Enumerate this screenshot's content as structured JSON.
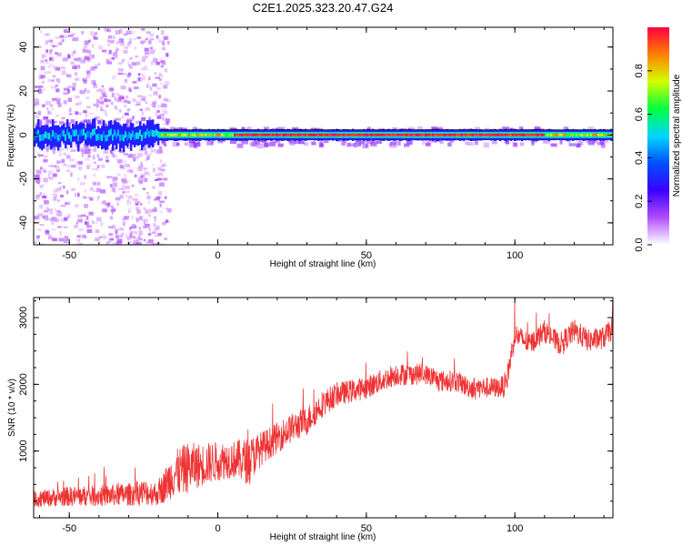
{
  "title": "C2E1.2025.323.20.47.G24",
  "chart_data": [
    {
      "type": "heatmap",
      "title": "C2E1.2025.323.20.47.G24",
      "xlabel": "Height of straight line (km)",
      "ylabel": "Frequency (Hz)",
      "xlim": [
        -62,
        133
      ],
      "ylim": [
        -50,
        49
      ],
      "xticks": [
        -50,
        0,
        50,
        100
      ],
      "yticks": [
        -40,
        -20,
        0,
        20,
        40
      ],
      "signal": {
        "center_frequency_hz": 0,
        "description": "Strong narrow carrier near 0 Hz for heights above about -20 km; broad scattered low-amplitude energy below about -20 km"
      },
      "colorbar": {
        "label": "Normalized spectral amplitude",
        "range": [
          0,
          1
        ],
        "ticks": [
          0.0,
          0.2,
          0.4,
          0.6,
          0.8
        ],
        "tick_labels": [
          "0.0",
          "0.2",
          "0.4",
          "0.6",
          "0.8"
        ],
        "colors": [
          "#ffffff",
          "#b14dff",
          "#3a00ff",
          "#0050ff",
          "#00d7ff",
          "#00ff40",
          "#d2ff00",
          "#ff8000",
          "#ff0040"
        ]
      }
    },
    {
      "type": "line",
      "xlabel": "Height of straight line (km)",
      "ylabel": "SNR (10 * v/v)",
      "xlim": [
        -62,
        133
      ],
      "ylim": [
        0,
        3300
      ],
      "xticks": [
        -50,
        0,
        50,
        100
      ],
      "yticks": [
        1000,
        2000,
        3000
      ],
      "series": [
        {
          "name": "SNR",
          "color": "#ee3333",
          "x": [
            -62,
            -50,
            -40,
            -30,
            -25,
            -20,
            -15,
            -10,
            -5,
            0,
            5,
            10,
            15,
            20,
            25,
            30,
            35,
            40,
            45,
            50,
            55,
            60,
            65,
            70,
            75,
            80,
            85,
            90,
            95,
            97,
            100,
            105,
            110,
            115,
            120,
            125,
            130,
            133
          ],
          "values": [
            280,
            320,
            330,
            350,
            380,
            360,
            650,
            750,
            800,
            850,
            880,
            850,
            1050,
            1200,
            1350,
            1450,
            1700,
            1850,
            1900,
            1950,
            2050,
            2150,
            2150,
            2150,
            2050,
            2050,
            1950,
            1950,
            1950,
            2000,
            2750,
            2600,
            2800,
            2600,
            2800,
            2650,
            2700,
            2850
          ],
          "noise_amplitude": [
            120,
            150,
            160,
            170,
            200,
            180,
            350,
            380,
            320,
            300,
            280,
            350,
            250,
            230,
            220,
            220,
            200,
            180,
            170,
            170,
            170,
            170,
            160,
            150,
            160,
            160,
            160,
            160,
            150,
            200,
            170,
            160,
            170,
            160,
            180,
            170,
            170,
            170
          ]
        }
      ]
    }
  ]
}
